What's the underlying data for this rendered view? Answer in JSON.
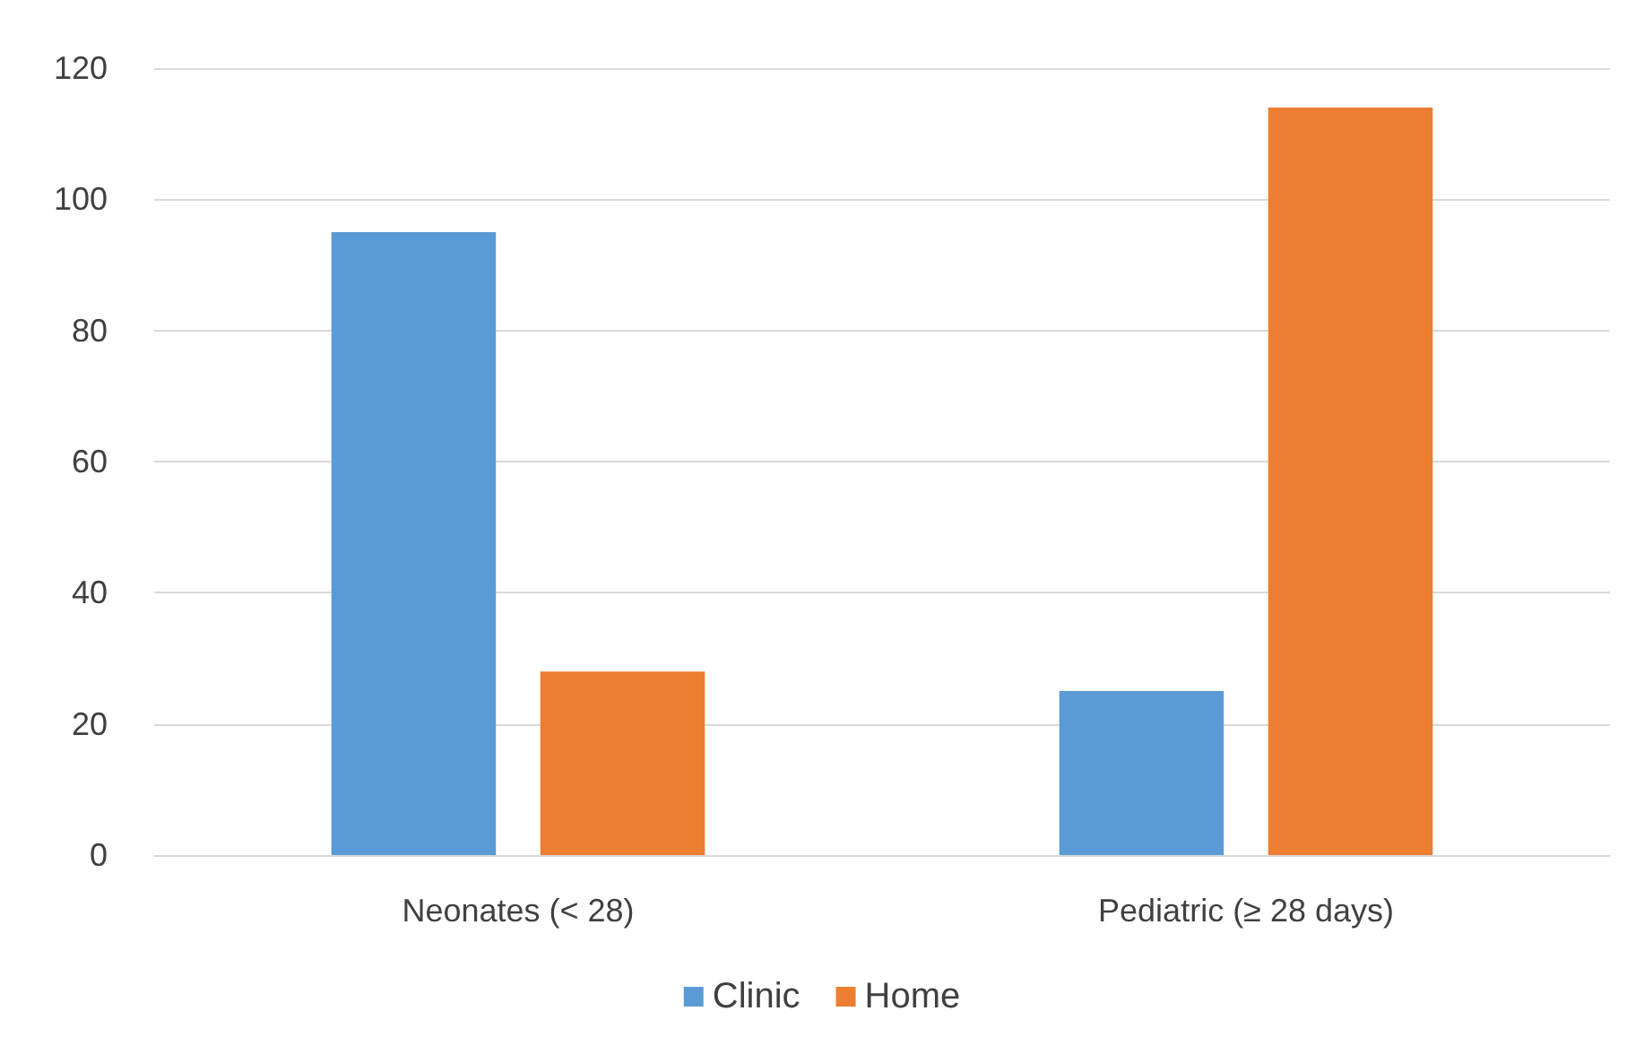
{
  "chart_data": {
    "type": "bar",
    "categories": [
      "Neonates (< 28)",
      "Pediatric (≥ 28 days)"
    ],
    "series": [
      {
        "name": "Clinic",
        "color": "#5b9bd5",
        "values": [
          95,
          25
        ]
      },
      {
        "name": "Home",
        "color": "#ed7d31",
        "values": [
          28,
          114
        ]
      }
    ],
    "ylim": [
      0,
      120
    ],
    "yticks": [
      0,
      20,
      40,
      60,
      80,
      100,
      120
    ],
    "grid": "y",
    "legend": "bottom"
  }
}
